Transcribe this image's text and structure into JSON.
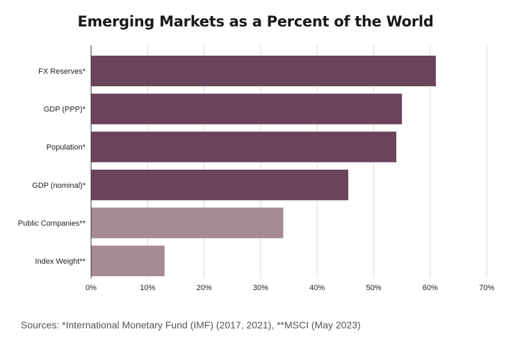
{
  "chart_data": {
    "type": "bar",
    "orientation": "horizontal",
    "title": "Emerging Markets as a Percent of the World",
    "categories": [
      "FX Reserves*",
      "GDP (PPP)*",
      "Population*",
      "GDP (nominal)*",
      "Public Companies**",
      "Index Weight**"
    ],
    "values": [
      61,
      55,
      54,
      45.5,
      34,
      13
    ],
    "value_unit": "%",
    "xlim": [
      0,
      70
    ],
    "xticks": [
      "0%",
      "10%",
      "20%",
      "30%",
      "40%",
      "50%",
      "60%",
      "70%"
    ],
    "xtick_values": [
      0,
      10,
      20,
      30,
      40,
      50,
      60,
      70
    ],
    "bar_colors": [
      "#6b435b",
      "#6b435b",
      "#6b435b",
      "#6b435b",
      "#a68a96",
      "#a68a96"
    ],
    "grid": "vertical",
    "grid_color": "#d9d9d9",
    "xlabel": "",
    "ylabel": ""
  },
  "source": "Sources: *International Monetary Fund (IMF) (2017, 2021), **MSCI (May 2023)"
}
